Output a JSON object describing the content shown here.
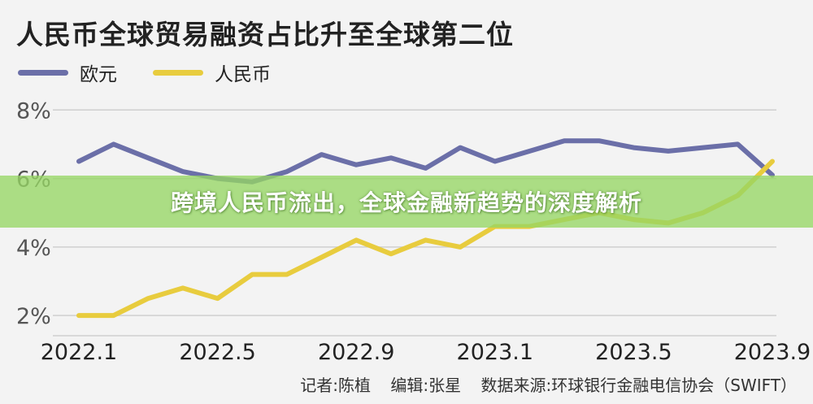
{
  "chart_data": {
    "type": "line",
    "title": "人民币全球贸易融资占比升至全球第二位",
    "x": [
      "2022.1",
      "2022.2",
      "2022.3",
      "2022.4",
      "2022.5",
      "2022.6",
      "2022.7",
      "2022.8",
      "2022.9",
      "2022.10",
      "2022.11",
      "2022.12",
      "2023.1",
      "2023.2",
      "2023.3",
      "2023.4",
      "2023.5",
      "2023.6",
      "2023.7",
      "2023.8",
      "2023.9"
    ],
    "xticks": [
      "2022.1",
      "2022.5",
      "2022.9",
      "2023.1",
      "2023.5",
      "2023.9"
    ],
    "yticks": [
      "8%",
      "6%",
      "4%",
      "2%"
    ],
    "ylim": [
      1.6,
      8.6
    ],
    "series": [
      {
        "name": "欧元",
        "color": "#6b6fa8",
        "values": [
          6.5,
          7.0,
          6.6,
          6.2,
          6.0,
          5.9,
          6.2,
          6.7,
          6.4,
          6.6,
          6.3,
          6.9,
          6.5,
          6.8,
          7.1,
          7.1,
          6.9,
          6.8,
          6.9,
          7.0,
          6.1
        ]
      },
      {
        "name": "人民币",
        "color": "#e8cc3e",
        "values": [
          2.0,
          2.0,
          2.5,
          2.8,
          2.5,
          3.2,
          3.2,
          3.7,
          4.2,
          3.8,
          4.2,
          4.0,
          4.6,
          4.6,
          4.8,
          5.0,
          4.8,
          4.7,
          5.0,
          5.5,
          6.5
        ]
      }
    ]
  },
  "banner": {
    "text": "跨境人民币流出，全球金融新趋势的深度解析"
  },
  "footer": {
    "reporter": "记者:陈植",
    "editor": "编辑:张星",
    "source": "数据来源:环球银行金融电信协会（SWIFT）"
  }
}
